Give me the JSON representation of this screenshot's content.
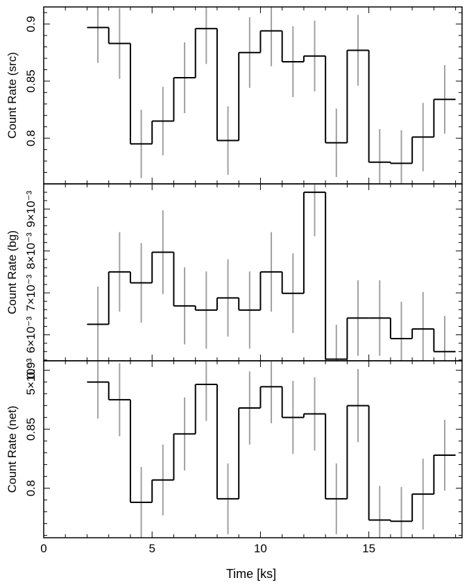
{
  "chart_data": {
    "type": "line",
    "style": "step-histogram-with-error-bars",
    "colors": {
      "step": "#000000",
      "errorbar": "#a0a0a0",
      "axis": "#000000",
      "background": "#ffffff"
    },
    "xlabel": "Time [ks]",
    "xlim": [
      0,
      19.3
    ],
    "xticks": [
      0,
      5,
      10,
      15
    ],
    "xtick_labels": [
      "0",
      "5",
      "10",
      "15"
    ],
    "bin_edges": [
      2,
      3,
      4,
      5,
      6,
      7,
      8,
      9,
      10,
      11,
      12,
      13,
      14,
      15,
      16,
      17,
      18,
      19
    ],
    "panels": [
      {
        "ylabel": "Count Rate (src)",
        "ylim": [
          0.76,
          0.915
        ],
        "yticks": [
          0.8,
          0.85,
          0.9
        ],
        "ytick_labels": [
          "0.8",
          "0.85",
          "0.9"
        ],
        "values": [
          0.897,
          0.883,
          0.795,
          0.815,
          0.853,
          0.896,
          0.798,
          0.875,
          0.894,
          0.867,
          0.872,
          0.796,
          0.877,
          0.779,
          0.778,
          0.801,
          0.834
        ],
        "errors": [
          0.031,
          0.031,
          0.03,
          0.03,
          0.031,
          0.031,
          0.03,
          0.031,
          0.031,
          0.031,
          0.031,
          0.03,
          0.031,
          0.029,
          0.029,
          0.03,
          0.03
        ]
      },
      {
        "ylabel": "Count Rate (bg)",
        "ylim": [
          0.00538,
          0.0096
        ],
        "yticks": [
          0.005,
          0.006,
          0.007,
          0.008,
          0.009
        ],
        "ytick_labels": [
          "5×10⁻³",
          "6×10⁻³",
          "7×10⁻³",
          "8×10⁻³",
          "9×10⁻³"
        ],
        "values": [
          0.00625,
          0.0075,
          0.00724,
          0.00797,
          0.00669,
          0.00659,
          0.00688,
          0.00659,
          0.0075,
          0.00699,
          0.0094,
          0.00542,
          0.0064,
          0.0064,
          0.00591,
          0.00614,
          0.0056
        ],
        "errors": [
          0.0009,
          0.00095,
          0.00095,
          0.001,
          0.00092,
          0.00092,
          0.00092,
          0.00092,
          0.00095,
          0.00095,
          0.00105,
          0.00082,
          0.0009,
          0.0009,
          0.00088,
          0.00088,
          0.00085
        ]
      },
      {
        "ylabel": "Count Rate (net)",
        "ylim": [
          0.758,
          0.908
        ],
        "yticks": [
          0.8,
          0.85,
          0.9
        ],
        "ytick_labels": [
          "0.8",
          "0.85",
          "0.9"
        ],
        "values": [
          0.89,
          0.875,
          0.788,
          0.807,
          0.846,
          0.888,
          0.791,
          0.868,
          0.886,
          0.86,
          0.863,
          0.791,
          0.87,
          0.773,
          0.772,
          0.795,
          0.828
        ],
        "errors": [
          0.031,
          0.031,
          0.03,
          0.03,
          0.031,
          0.031,
          0.03,
          0.031,
          0.031,
          0.031,
          0.031,
          0.03,
          0.031,
          0.029,
          0.029,
          0.03,
          0.03
        ]
      }
    ]
  }
}
